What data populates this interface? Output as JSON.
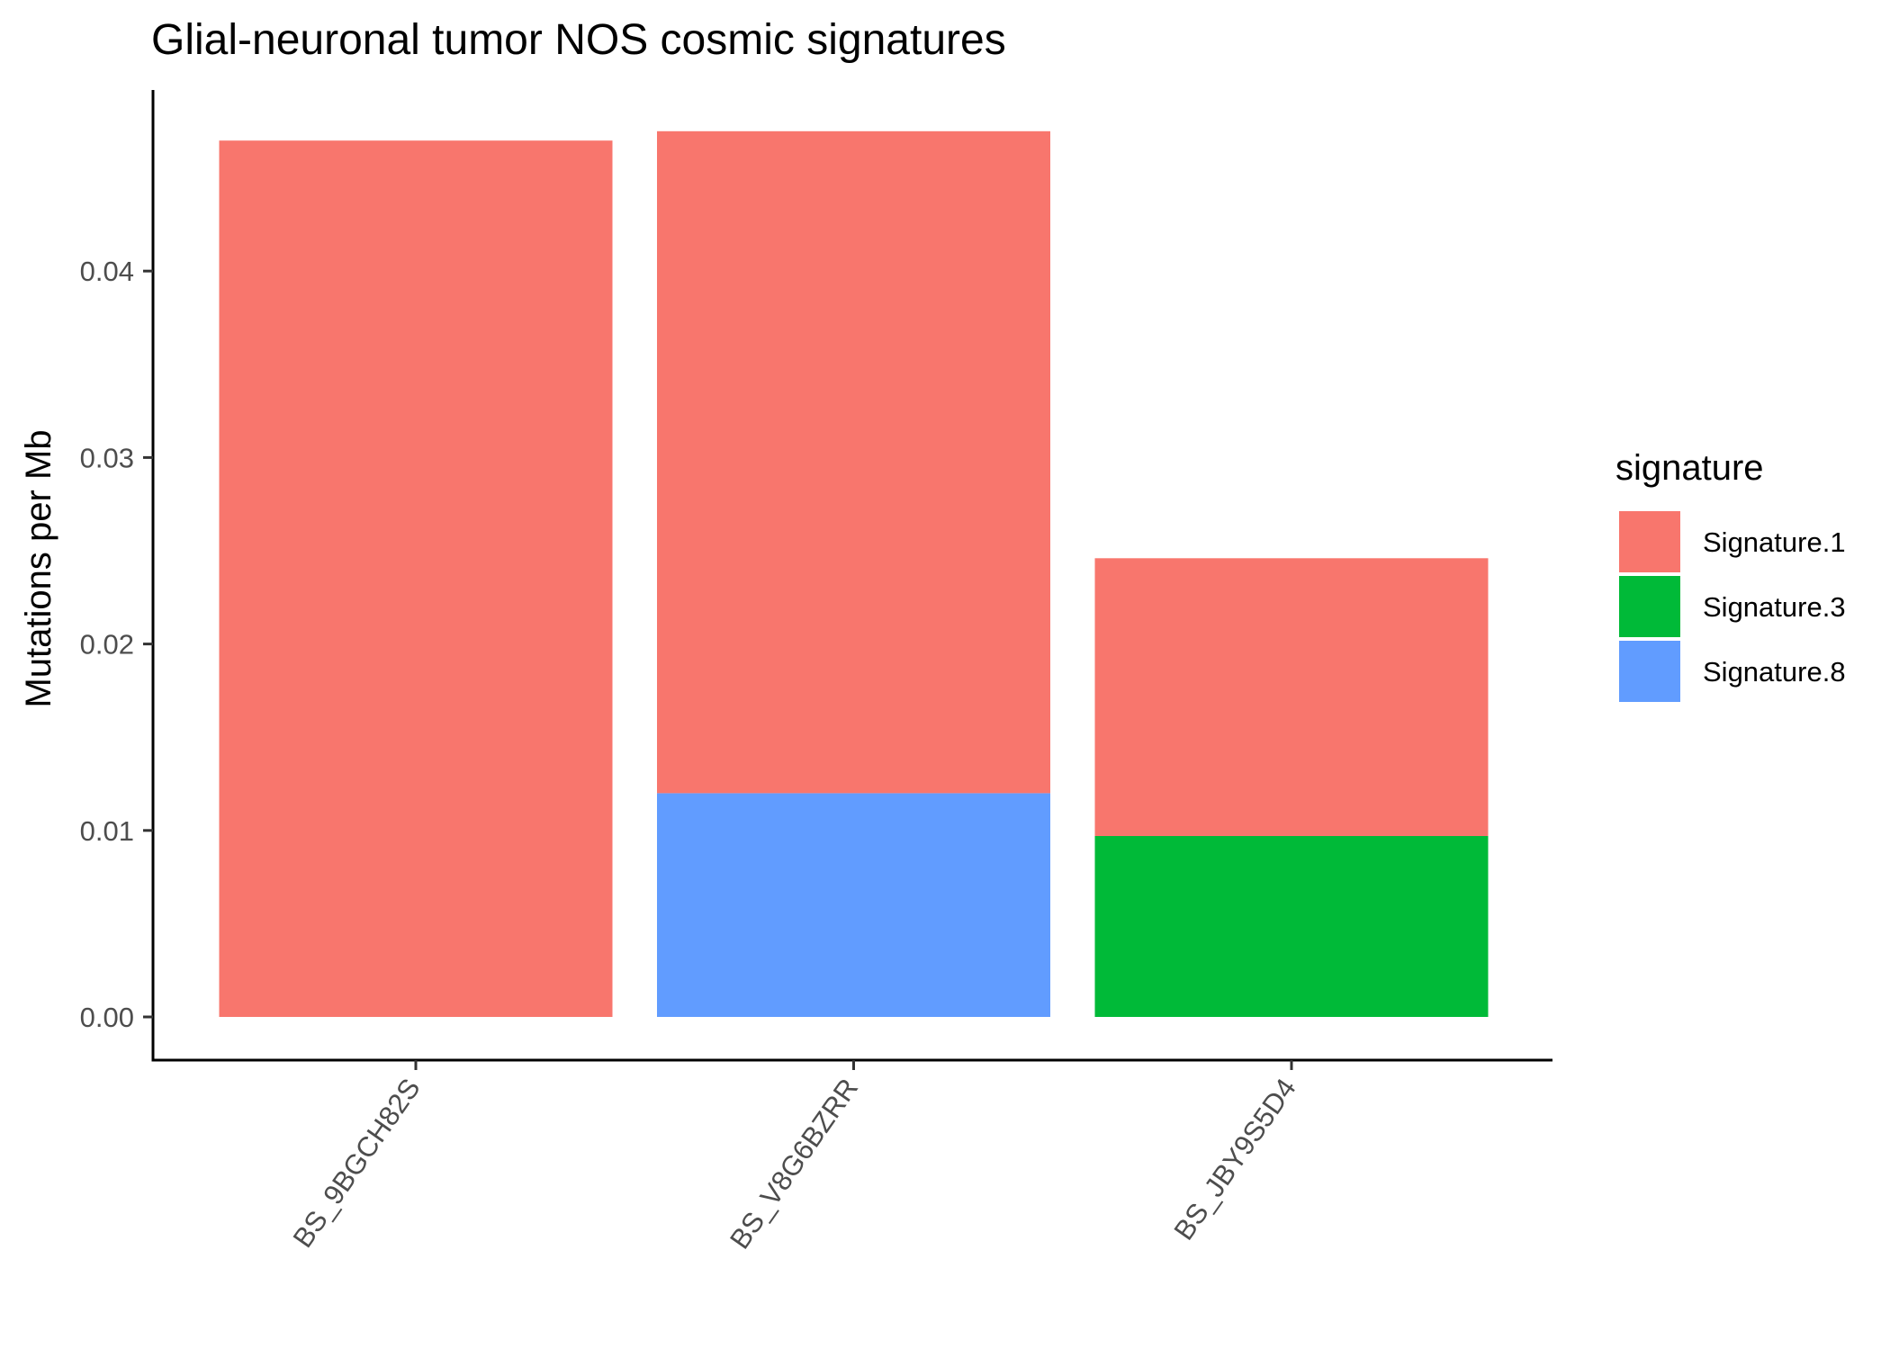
{
  "chart_data": {
    "type": "bar",
    "stacked": true,
    "title": "Glial-neuronal tumor NOS cosmic signatures",
    "xlabel": "",
    "ylabel": "Mutations per Mb",
    "categories": [
      "BS_9BGCH82S",
      "BS_V8G6BZRR",
      "BS_JBY9S5D4"
    ],
    "series": [
      {
        "name": "Signature.1",
        "color": "#F8766D",
        "values": [
          0.047,
          0.0355,
          0.0149
        ]
      },
      {
        "name": "Signature.3",
        "color": "#00BA38",
        "values": [
          0,
          0,
          0.0097
        ]
      },
      {
        "name": "Signature.8",
        "color": "#619CFF",
        "values": [
          0,
          0.012,
          0
        ]
      }
    ],
    "stack_order_bottom_to_top": [
      "Signature.8",
      "Signature.3",
      "Signature.1"
    ],
    "ylim": [
      0,
      0.0495
    ],
    "y_ticks": [
      0.0,
      0.01,
      0.02,
      0.03,
      0.04
    ],
    "y_tick_labels": [
      "0.00",
      "0.01",
      "0.02",
      "0.03",
      "0.04"
    ],
    "x_tick_rotation_deg": 55,
    "grid": false,
    "legend": {
      "title": "signature",
      "position": "right",
      "entries": [
        "Signature.1",
        "Signature.3",
        "Signature.8"
      ]
    }
  }
}
